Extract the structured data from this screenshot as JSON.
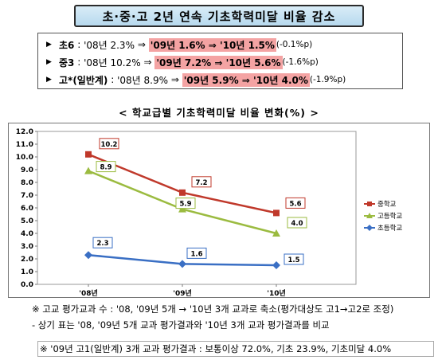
{
  "title": "초·중·고 2년 연속 기초학력미달 비율 감소",
  "stats": [
    {
      "bullet": "▶",
      "level": "초6",
      "base": "'08년 2.3%",
      "arrow1": "⇒",
      "y09": "'09년 1.6%",
      "arrow2": "⇒",
      "y10": "'10년 1.5%",
      "change": "(-0.1%p)"
    },
    {
      "bullet": "▶",
      "level": "중3",
      "base": "'08년 10.2%",
      "arrow1": "⇒",
      "y09": "'09년 7.2%",
      "arrow2": "⇒",
      "y10": "'10년 5.6%",
      "change": "(-1.6%p)"
    },
    {
      "bullet": "▶",
      "level": "고*(일반계)",
      "base": "'08년 8.9%",
      "arrow1": "⇒",
      "y09": "'09년 5.9%",
      "arrow2": "⇒",
      "y10": "'10년 4.0%",
      "change": "(-1.9%p)"
    }
  ],
  "chart_subtitle": "< 학교급별 기초학력미달 비율 변화(%) >",
  "chart_data": {
    "type": "line",
    "categories": [
      "'08년",
      "'09년",
      "'10년"
    ],
    "ylim": [
      0,
      12
    ],
    "yticks": [
      "0.0",
      "1.0",
      "2.0",
      "3.0",
      "4.0",
      "5.0",
      "6.0",
      "7.0",
      "8.0",
      "9.0",
      "10.0",
      "11.0",
      "12.0"
    ],
    "grid": false,
    "legend_position": "right",
    "series": [
      {
        "name": "중학교",
        "values": [
          10.2,
          7.2,
          5.6
        ],
        "labels": [
          "10.2",
          "7.2",
          "5.6"
        ],
        "color": "#c0392b",
        "marker": "square"
      },
      {
        "name": "고등학교",
        "values": [
          8.9,
          5.9,
          4.0
        ],
        "labels": [
          "8.9",
          "5.9",
          "4.0"
        ],
        "color": "#9bbb40",
        "marker": "triangle"
      },
      {
        "name": "초등학교",
        "values": [
          2.3,
          1.6,
          1.5
        ],
        "labels": [
          "2.3",
          "1.6",
          "1.5"
        ],
        "color": "#3a6fc4",
        "marker": "diamond"
      }
    ]
  },
  "notes": {
    "line1": "※ 고교 평가교과 수 : '08, '09년 5개 → '10년 3개 교과로 축소(평가대상도 고1→고2로 조정)",
    "line2": "- 상기 표는 '08, '09년 5개 교과 평가결과와 '10년 3개 교과 평가결과를 비교",
    "line3": "※ '09년 고1(일반계) 3개 교과 평가결과 : 보통이상 72.0%, 기초 23.9%, 기초미달 4.0%"
  }
}
